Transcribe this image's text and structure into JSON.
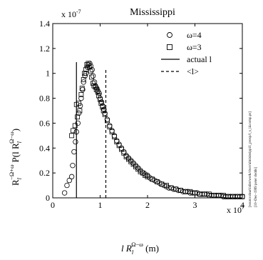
{
  "chart_data": {
    "type": "scatter",
    "title": "Mississippi",
    "xlabel": {
      "prefix": "l R",
      "sub": "l",
      "sup": "Ω−ω",
      "suffix": " (m)"
    },
    "ylabel": {
      "prefix": "R",
      "sub": "l",
      "sup": "−Ω+ω",
      "middle": "P(l R",
      "sub2": "l",
      "sup2": "Ω−ω",
      "suffix": ")"
    },
    "x_multiplier": "x 10",
    "x_multiplier_exp": "7",
    "y_multiplier": "x 10",
    "y_multiplier_exp": "-7",
    "xlim": [
      0,
      4
    ],
    "ylim": [
      0,
      1.4
    ],
    "x_ticks": [
      0,
      1,
      2,
      3,
      4
    ],
    "y_ticks": [
      0,
      0.2,
      0.4,
      0.6,
      0.8,
      1,
      1.2,
      1.4
    ],
    "x_tick_labels": [
      "0",
      "1",
      "2",
      "3",
      "4"
    ],
    "y_tick_labels": [
      "0",
      "0.2",
      "0.4",
      "0.6",
      "0.8",
      "1",
      "1.2",
      "1.4"
    ],
    "grid": false,
    "legend_position": "top-right",
    "legend": [
      {
        "label": "ω=4",
        "marker": "circle"
      },
      {
        "label": "ω=3",
        "marker": "square"
      },
      {
        "label": "actual l",
        "line": "solid"
      },
      {
        "label": "<l>",
        "line": "dashed"
      }
    ],
    "reference_lines": [
      {
        "name": "actual l",
        "x": 0.5,
        "y_top": 1.09,
        "style": "solid"
      },
      {
        "name": "<l>",
        "x": 1.12,
        "y_top": 1.03,
        "style": "dashed"
      }
    ],
    "series": [
      {
        "name": "ω=4",
        "marker": "circle",
        "x": [
          0.25,
          0.3,
          0.35,
          0.4,
          0.42,
          0.45,
          0.48,
          0.5,
          0.53,
          0.55,
          0.58,
          0.6,
          0.63,
          0.65,
          0.68,
          0.7,
          0.73,
          0.75,
          0.78,
          0.8,
          0.83,
          0.85,
          0.88,
          0.9,
          0.93,
          0.95,
          0.98,
          1.0,
          1.03,
          1.05,
          1.08,
          1.1,
          1.15,
          1.2,
          1.25,
          1.3,
          1.35,
          1.4,
          1.45,
          1.5,
          1.55,
          1.6,
          1.65,
          1.7,
          1.75,
          1.8,
          1.85,
          1.9,
          1.95,
          2.0,
          2.05,
          2.1,
          2.15,
          2.2,
          2.25,
          2.3,
          2.35,
          2.4,
          2.45,
          2.5,
          2.55,
          2.6,
          2.65,
          2.7,
          2.75,
          2.8,
          2.85,
          2.9,
          2.95,
          3.0,
          3.05,
          3.1,
          3.15,
          3.2,
          3.25,
          3.3,
          3.35,
          3.4,
          3.45,
          3.5,
          3.55,
          3.6,
          3.65,
          3.7,
          3.75,
          3.8,
          3.85,
          3.9,
          3.95,
          4.0
        ],
        "y": [
          0.04,
          0.1,
          0.14,
          0.17,
          0.26,
          0.37,
          0.45,
          0.53,
          0.6,
          0.68,
          0.74,
          0.8,
          0.87,
          0.93,
          0.98,
          1.0,
          1.05,
          1.07,
          1.08,
          1.06,
          1.03,
          0.98,
          0.93,
          0.9,
          0.88,
          0.86,
          0.84,
          0.8,
          0.77,
          0.74,
          0.71,
          0.68,
          0.63,
          0.58,
          0.54,
          0.5,
          0.46,
          0.43,
          0.4,
          0.37,
          0.34,
          0.32,
          0.3,
          0.28,
          0.26,
          0.24,
          0.22,
          0.2,
          0.19,
          0.18,
          0.16,
          0.15,
          0.14,
          0.13,
          0.12,
          0.11,
          0.1,
          0.09,
          0.08,
          0.08,
          0.07,
          0.07,
          0.06,
          0.06,
          0.05,
          0.05,
          0.05,
          0.04,
          0.04,
          0.04,
          0.04,
          0.03,
          0.03,
          0.03,
          0.03,
          0.02,
          0.02,
          0.02,
          0.02,
          0.02,
          0.02,
          0.01,
          0.01,
          0.01,
          0.01,
          0.01,
          0.01,
          0.01,
          0.01,
          0.01
        ]
      },
      {
        "name": "ω=3",
        "marker": "square",
        "x": [
          0.4,
          0.43,
          0.47,
          0.5,
          0.52,
          0.55,
          0.57,
          0.6,
          0.62,
          0.65,
          0.67,
          0.7,
          0.72,
          0.75,
          0.77,
          0.8,
          0.82,
          0.85,
          0.87,
          0.9,
          0.92,
          0.95,
          0.97,
          1.0,
          1.02,
          1.05,
          1.07,
          1.1,
          1.15,
          1.2,
          1.25,
          1.3,
          1.35,
          1.4,
          1.45,
          1.5,
          1.55,
          1.6,
          1.65,
          1.7,
          1.75,
          1.8,
          1.85,
          1.9,
          1.95,
          2.0,
          2.1,
          2.2,
          2.3,
          2.4,
          2.5,
          2.6,
          2.7,
          2.8,
          2.9,
          3.0,
          3.1,
          3.2,
          3.3,
          3.4,
          3.5,
          3.6,
          3.7,
          3.8,
          3.9,
          4.0
        ],
        "y": [
          0.5,
          0.54,
          0.58,
          0.75,
          0.65,
          0.76,
          0.7,
          0.83,
          0.88,
          0.95,
          1.0,
          1.03,
          1.07,
          1.08,
          1.05,
          1.02,
          0.97,
          0.92,
          0.9,
          0.89,
          0.87,
          0.85,
          0.82,
          0.79,
          0.76,
          0.73,
          0.7,
          0.67,
          0.62,
          0.57,
          0.53,
          0.49,
          0.45,
          0.42,
          0.39,
          0.36,
          0.33,
          0.31,
          0.29,
          0.27,
          0.25,
          0.23,
          0.21,
          0.2,
          0.18,
          0.17,
          0.15,
          0.13,
          0.11,
          0.1,
          0.08,
          0.07,
          0.06,
          0.05,
          0.05,
          0.04,
          0.03,
          0.03,
          0.03,
          0.02,
          0.02,
          0.02,
          0.01,
          0.01,
          0.01,
          0.01
        ]
      }
    ]
  },
  "sidenote": {
    "line1": "[source:dearl/alist/work/river/ulmisissippi/l_prexp/l_s_l4.comp.ps]",
    "line2": "[10–Dec–1999 peter dodds]"
  }
}
